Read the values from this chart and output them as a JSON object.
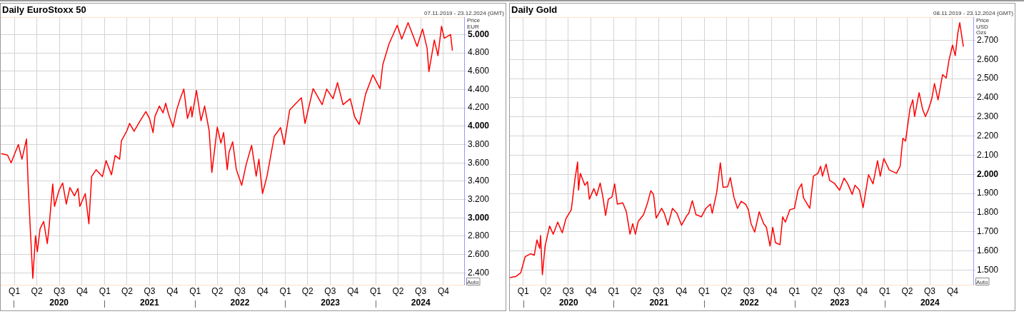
{
  "chart_data": [
    {
      "type": "line",
      "title": "Daily EuroStoxx 50",
      "ylabel": "Price EUR",
      "annotations": [
        "07.11.2019 - 23.12.2024 (GMT)",
        "Auto"
      ],
      "x": [
        2019.86,
        2019.93,
        2019.97,
        2020.05,
        2020.09,
        2020.14,
        2020.16,
        2020.18,
        2020.21,
        2020.24,
        2020.26,
        2020.29,
        2020.33,
        2020.37,
        2020.39,
        2020.43,
        2020.45,
        2020.5,
        2020.54,
        2020.58,
        2020.62,
        2020.67,
        2020.71,
        2020.73,
        2020.79,
        2020.83,
        2020.86,
        2020.91,
        2020.98,
        2021.02,
        2021.08,
        2021.12,
        2021.17,
        2021.19,
        2021.25,
        2021.28,
        2021.33,
        2021.38,
        2021.46,
        2021.5,
        2021.54,
        2021.56,
        2021.61,
        2021.65,
        2021.68,
        2021.71,
        2021.76,
        2021.8,
        2021.84,
        2021.88,
        2021.92,
        2021.96,
        2021.97,
        2022.02,
        2022.07,
        2022.11,
        2022.16,
        2022.19,
        2022.25,
        2022.29,
        2022.32,
        2022.36,
        2022.38,
        2022.42,
        2022.46,
        2022.52,
        2022.57,
        2022.63,
        2022.68,
        2022.71,
        2022.75,
        2022.8,
        2022.88,
        2022.95,
        2022.99,
        2023.05,
        2023.12,
        2023.18,
        2023.22,
        2023.31,
        2023.41,
        2023.46,
        2023.53,
        2023.58,
        2023.64,
        2023.72,
        2023.77,
        2023.82,
        2023.89,
        2023.97,
        2024.05,
        2024.08,
        2024.15,
        2024.24,
        2024.29,
        2024.36,
        2024.46,
        2024.52,
        2024.57,
        2024.59,
        2024.65,
        2024.69,
        2024.73,
        2024.76,
        2024.83,
        2024.85
      ],
      "series": [
        {
          "color": "#ff0000",
          "values": [
            3700,
            3685,
            3600,
            3800,
            3640,
            3860,
            3330,
            2920,
            2340,
            2805,
            2630,
            2880,
            2960,
            2720,
            2900,
            3370,
            3125,
            3300,
            3380,
            3150,
            3330,
            3240,
            3320,
            3125,
            3265,
            2935,
            3450,
            3525,
            3450,
            3625,
            3470,
            3680,
            3640,
            3840,
            3950,
            4030,
            3945,
            4030,
            4160,
            4085,
            3930,
            4105,
            4220,
            4145,
            4250,
            4135,
            3990,
            4175,
            4300,
            4405,
            4085,
            4215,
            4100,
            4390,
            4060,
            4220,
            3950,
            3495,
            3990,
            3815,
            3930,
            3525,
            3715,
            3830,
            3530,
            3355,
            3585,
            3790,
            3455,
            3640,
            3265,
            3455,
            3890,
            3985,
            3800,
            4175,
            4250,
            4310,
            4030,
            4410,
            4235,
            4405,
            4300,
            4475,
            4235,
            4300,
            4100,
            4020,
            4350,
            4560,
            4410,
            4670,
            4900,
            5100,
            4950,
            5130,
            4870,
            5060,
            4850,
            4595,
            4940,
            4770,
            5090,
            4960,
            5000,
            4825
          ]
        }
      ],
      "xlim": [
        2019.855,
        2024.98
      ],
      "xticks": [
        {
          "value": 2020,
          "label": null
        },
        {
          "value": 2020.5,
          "label": "2020"
        },
        {
          "value": 2021,
          "label": null
        },
        {
          "value": 2021.5,
          "label": "2021"
        },
        {
          "value": 2022,
          "label": null
        },
        {
          "value": 2022.5,
          "label": "2022"
        },
        {
          "value": 2023,
          "label": null
        },
        {
          "value": 2023.5,
          "label": "2023"
        },
        {
          "value": 2024,
          "label": null
        },
        {
          "value": 2024.5,
          "label": "2024"
        }
      ],
      "x2lim": [
        "2019-11-07",
        "2024-12-24"
      ],
      "x2ticks": [
        {
          "value": "2020-01-01",
          "label": "Q1"
        },
        {
          "value": "2020-04-01",
          "label": "Q2"
        },
        {
          "value": "2020-07-01",
          "label": "Q3"
        },
        {
          "value": "2020-10-01",
          "label": "Q4"
        },
        {
          "value": "2021-01-01",
          "label": "Q1"
        },
        {
          "value": "2021-04-01",
          "label": "Q2"
        },
        {
          "value": "2021-07-01",
          "label": "Q3"
        },
        {
          "value": "2021-10-01",
          "label": "Q4"
        },
        {
          "value": "2022-01-01",
          "label": "Q1"
        },
        {
          "value": "2022-04-01",
          "label": "Q2"
        },
        {
          "value": "2022-07-01",
          "label": "Q3"
        },
        {
          "value": "2022-10-01",
          "label": "Q4"
        },
        {
          "value": "2023-01-01",
          "label": "Q1"
        },
        {
          "value": "2023-04-01",
          "label": "Q2"
        },
        {
          "value": "2023-07-01",
          "label": "Q3"
        },
        {
          "value": "2023-10-01",
          "label": "Q4"
        },
        {
          "value": "2024-01-01",
          "label": "Q1"
        },
        {
          "value": "2024-04-01",
          "label": "Q2"
        },
        {
          "value": "2024-07-01",
          "label": "Q3"
        },
        {
          "value": "2024-10-01",
          "label": "Q4"
        }
      ],
      "ylim": [
        2270,
        5190
      ],
      "yticks": [
        {
          "value": 2400,
          "label": "2.400"
        },
        {
          "value": 2600,
          "label": "2.600"
        },
        {
          "value": 2800,
          "label": "2.800"
        },
        {
          "value": 3000,
          "label": "3.000"
        },
        {
          "value": 3200,
          "label": "3.200"
        },
        {
          "value": 3400,
          "label": "3.400"
        },
        {
          "value": 3600,
          "label": "3.600"
        },
        {
          "value": 3800,
          "label": "3.800"
        },
        {
          "value": 4000,
          "label": "4.000"
        },
        {
          "value": 4200,
          "label": "4.200"
        },
        {
          "value": 4400,
          "label": "4.400"
        },
        {
          "value": 4600,
          "label": "4.600"
        },
        {
          "value": 4800,
          "label": "4.800"
        },
        {
          "value": 5000,
          "label": "5.000"
        }
      ],
      "grid": true,
      "legend": false,
      "marker": "none",
      "line_style": "solid"
    },
    {
      "type": "line",
      "title": "Daily Gold",
      "ylabel": "Price USD Ozs",
      "annotations": [
        "08.11.2019 - 23.12.2024 (GMT)",
        "Auto"
      ],
      "x": [
        2019.85,
        2019.92,
        2019.97,
        2020.02,
        2020.08,
        2020.12,
        2020.15,
        2020.18,
        2020.19,
        2020.21,
        2020.24,
        2020.29,
        2020.33,
        2020.38,
        2020.43,
        2020.47,
        2020.53,
        2020.57,
        2020.6,
        2020.61,
        2020.63,
        2020.68,
        2020.71,
        2020.73,
        2020.78,
        2020.81,
        2020.85,
        2020.88,
        2020.91,
        2020.94,
        2020.98,
        2021.01,
        2021.04,
        2021.1,
        2021.14,
        2021.18,
        2021.21,
        2021.24,
        2021.27,
        2021.33,
        2021.37,
        2021.41,
        2021.44,
        2021.47,
        2021.53,
        2021.56,
        2021.6,
        2021.65,
        2021.7,
        2021.75,
        2021.81,
        2021.83,
        2021.87,
        2021.91,
        2021.97,
        2022.02,
        2022.07,
        2022.09,
        2022.14,
        2022.18,
        2022.21,
        2022.26,
        2022.29,
        2022.33,
        2022.37,
        2022.41,
        2022.46,
        2022.49,
        2022.52,
        2022.56,
        2022.61,
        2022.66,
        2022.69,
        2022.73,
        2022.76,
        2022.79,
        2022.84,
        2022.87,
        2022.9,
        2022.95,
        2023.0,
        2023.04,
        2023.08,
        2023.1,
        2023.17,
        2023.21,
        2023.26,
        2023.29,
        2023.31,
        2023.35,
        2023.39,
        2023.44,
        2023.5,
        2023.55,
        2023.59,
        2023.64,
        2023.67,
        2023.72,
        2023.76,
        2023.82,
        2023.87,
        2023.92,
        2023.95,
        2023.99,
        2024.05,
        2024.13,
        2024.17,
        2024.2,
        2024.23,
        2024.28,
        2024.31,
        2024.33,
        2024.38,
        2024.42,
        2024.45,
        2024.48,
        2024.52,
        2024.55,
        2024.59,
        2024.64,
        2024.68,
        2024.71,
        2024.75,
        2024.78,
        2024.81,
        2024.83,
        2024.87
      ],
      "series": [
        {
          "color": "#ff0000",
          "values": [
            1460,
            1467,
            1485,
            1570,
            1585,
            1577,
            1657,
            1613,
            1680,
            1475,
            1625,
            1730,
            1687,
            1750,
            1694,
            1767,
            1815,
            1972,
            2064,
            1917,
            2005,
            1943,
            1961,
            1870,
            1925,
            1888,
            1954,
            1881,
            1785,
            1870,
            1881,
            1950,
            1844,
            1851,
            1804,
            1687,
            1742,
            1687,
            1753,
            1789,
            1844,
            1914,
            1895,
            1771,
            1822,
            1796,
            1734,
            1822,
            1796,
            1734,
            1785,
            1796,
            1862,
            1789,
            1778,
            1822,
            1844,
            1796,
            1906,
            2060,
            1932,
            1935,
            1983,
            1881,
            1822,
            1859,
            1844,
            1815,
            1742,
            1698,
            1804,
            1742,
            1723,
            1625,
            1723,
            1643,
            1632,
            1778,
            1750,
            1815,
            1822,
            1917,
            1950,
            1877,
            1822,
            1990,
            2005,
            2042,
            1990,
            2053,
            1968,
            1954,
            1917,
            1980,
            1950,
            1895,
            1943,
            1917,
            1826,
            1998,
            1950,
            2071,
            1990,
            2082,
            2023,
            2005,
            2042,
            2188,
            2173,
            2345,
            2389,
            2302,
            2426,
            2338,
            2302,
            2334,
            2393,
            2474,
            2389,
            2521,
            2503,
            2594,
            2675,
            2620,
            2741,
            2792,
            2667
          ]
        }
      ],
      "xlim": [
        2019.85,
        2024.98
      ],
      "xticks": [
        {
          "value": 2020,
          "label": null
        },
        {
          "value": 2020.5,
          "label": "2020"
        },
        {
          "value": 2021,
          "label": null
        },
        {
          "value": 2021.5,
          "label": "2021"
        },
        {
          "value": 2022,
          "label": null
        },
        {
          "value": 2022.5,
          "label": "2022"
        },
        {
          "value": 2023,
          "label": null
        },
        {
          "value": 2023.5,
          "label": "2023"
        },
        {
          "value": 2024,
          "label": null
        },
        {
          "value": 2024.5,
          "label": "2024"
        }
      ],
      "x2lim": [
        "2019-11-08",
        "2024-12-24"
      ],
      "x2ticks": [
        {
          "value": "2020-01-01",
          "label": "Q1"
        },
        {
          "value": "2020-04-01",
          "label": "Q2"
        },
        {
          "value": "2020-07-01",
          "label": "Q3"
        },
        {
          "value": "2020-10-01",
          "label": "Q4"
        },
        {
          "value": "2021-01-01",
          "label": "Q1"
        },
        {
          "value": "2021-04-01",
          "label": "Q2"
        },
        {
          "value": "2021-07-01",
          "label": "Q3"
        },
        {
          "value": "2021-10-01",
          "label": "Q4"
        },
        {
          "value": "2022-01-01",
          "label": "Q1"
        },
        {
          "value": "2022-04-01",
          "label": "Q2"
        },
        {
          "value": "2022-07-01",
          "label": "Q3"
        },
        {
          "value": "2022-10-01",
          "label": "Q4"
        },
        {
          "value": "2023-01-01",
          "label": "Q1"
        },
        {
          "value": "2023-04-01",
          "label": "Q2"
        },
        {
          "value": "2023-07-01",
          "label": "Q3"
        },
        {
          "value": "2023-10-01",
          "label": "Q4"
        },
        {
          "value": "2024-01-01",
          "label": "Q1"
        },
        {
          "value": "2024-04-01",
          "label": "Q2"
        },
        {
          "value": "2024-07-01",
          "label": "Q3"
        },
        {
          "value": "2024-10-01",
          "label": "Q4"
        }
      ],
      "ylim": [
        1423,
        2821
      ],
      "yticks": [
        {
          "value": 1500,
          "label": "1.500"
        },
        {
          "value": 1600,
          "label": "1.600"
        },
        {
          "value": 1700,
          "label": "1.700"
        },
        {
          "value": 1800,
          "label": "1.800"
        },
        {
          "value": 1900,
          "label": "1.900"
        },
        {
          "value": 2000,
          "label": "2.000"
        },
        {
          "value": 2100,
          "label": "2.100"
        },
        {
          "value": 2200,
          "label": "2.200"
        },
        {
          "value": 2300,
          "label": "2.300"
        },
        {
          "value": 2400,
          "label": "2.400"
        },
        {
          "value": 2500,
          "label": "2.500"
        },
        {
          "value": 2600,
          "label": "2.600"
        },
        {
          "value": 2700,
          "label": "2.700"
        }
      ],
      "grid": true,
      "legend": false,
      "marker": "none",
      "line_style": "solid"
    }
  ]
}
